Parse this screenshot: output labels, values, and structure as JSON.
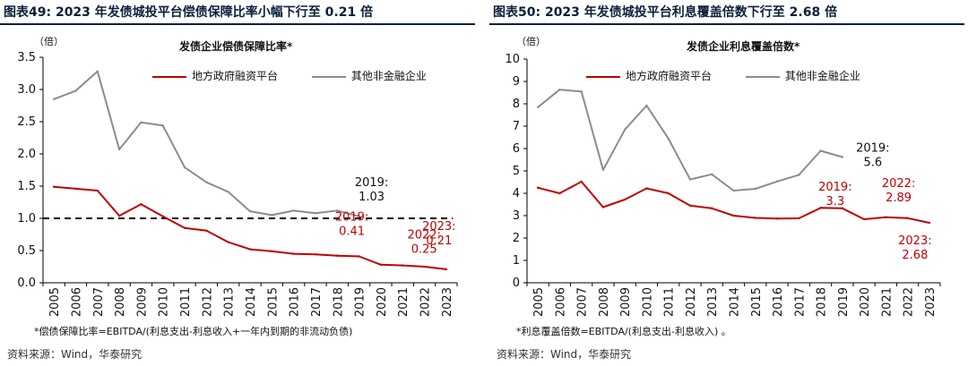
{
  "panels": [
    {
      "title": "图表49:  2023 年发债城投平台偿债保障比率小幅下行至 0.21 倍",
      "unit": "（倍）",
      "chart_title": "发债企业偿债保障比率*",
      "note": "*偿债保障比率=EBITDA/(利息支出-利息收入+一年内到期的非流动负债)",
      "source": "资料来源：Wind，华泰研究"
    },
    {
      "title": "图表50:  2023 年发债城投平台利息覆盖倍数下行至 2.68 倍",
      "unit": "（倍）",
      "chart_title": "发债企业利息覆盖倍数*",
      "note": "*利息覆盖倍数=EBITDA/(利息支出-利息收入) 。",
      "source": "资料来源：Wind，华泰研究"
    }
  ],
  "chart_data": [
    {
      "type": "line",
      "title": "发债企业偿债保障比率*",
      "ylabel": "（倍）",
      "x": [
        "2005",
        "2006",
        "2007",
        "2008",
        "2009",
        "2010",
        "2011",
        "2012",
        "2013",
        "2014",
        "2015",
        "2016",
        "2017",
        "2018",
        "2019",
        "2020",
        "2021",
        "2022",
        "2023"
      ],
      "ylim": [
        0,
        3.5
      ],
      "yticks": [
        "0.0",
        "0.5",
        "1.0",
        "1.5",
        "2.0",
        "2.5",
        "3.0",
        "3.5"
      ],
      "legend_position": "top",
      "grid": false,
      "series": [
        {
          "name": "地方政府融资平台",
          "color": "#c00000",
          "values": [
            1.49,
            1.46,
            1.43,
            1.04,
            1.22,
            1.03,
            0.85,
            0.81,
            0.63,
            0.52,
            0.49,
            0.45,
            0.44,
            0.42,
            0.41,
            0.28,
            0.27,
            0.25,
            0.21
          ]
        },
        {
          "name": "其他非金融企业",
          "color": "#8c8c8c",
          "values": [
            2.85,
            2.98,
            3.28,
            2.07,
            2.49,
            2.44,
            1.79,
            1.56,
            1.41,
            1.11,
            1.05,
            1.12,
            1.08,
            1.12,
            1.03,
            null,
            null,
            null,
            null
          ]
        }
      ],
      "reference_line": {
        "y": 1.0,
        "style": "dashed",
        "color": "#000000"
      },
      "annotations": [
        {
          "x": "2019",
          "series": 1,
          "line1": "2019:",
          "line2": "1.03",
          "color": "#111111"
        },
        {
          "x": "2019",
          "series": 0,
          "line1": "2019:",
          "line2": "0.41",
          "color": "#c00000"
        },
        {
          "x": "2021",
          "series": 0,
          "line1": "2022:",
          "line2": "0.25",
          "color": "#c00000"
        },
        {
          "x": "2023",
          "series": 0,
          "line1": "2023:",
          "line2": "0.21",
          "color": "#c00000"
        }
      ]
    },
    {
      "type": "line",
      "title": "发债企业利息覆盖倍数*",
      "ylabel": "（倍）",
      "x": [
        "2005",
        "2006",
        "2007",
        "2008",
        "2009",
        "2010",
        "2011",
        "2012",
        "2013",
        "2014",
        "2015",
        "2016",
        "2017",
        "2018",
        "2019",
        "2020",
        "2021",
        "2022",
        "2023"
      ],
      "ylim": [
        0,
        10
      ],
      "yticks": [
        "0",
        "1",
        "2",
        "3",
        "4",
        "5",
        "6",
        "7",
        "8",
        "9",
        "10"
      ],
      "legend_position": "top",
      "grid": false,
      "series": [
        {
          "name": "地方政府融资平台",
          "color": "#c00000",
          "values": [
            4.25,
            4.0,
            4.52,
            3.38,
            3.72,
            4.22,
            4.0,
            3.45,
            3.33,
            3.0,
            2.9,
            2.87,
            2.88,
            3.35,
            3.33,
            2.84,
            2.93,
            2.89,
            2.68
          ]
        },
        {
          "name": "其他非金融企业",
          "color": "#8c8c8c",
          "values": [
            7.85,
            8.63,
            8.55,
            5.05,
            6.85,
            7.92,
            6.45,
            4.62,
            4.85,
            4.12,
            4.2,
            4.53,
            4.82,
            5.9,
            5.62,
            null,
            null,
            null,
            null
          ]
        }
      ],
      "annotations": [
        {
          "x": "2019",
          "series": 1,
          "line1": "2019:",
          "line2": "5.6",
          "color": "#111111"
        },
        {
          "x": "2019",
          "series": 0,
          "line1": "2019:",
          "line2": "3.3",
          "color": "#c00000"
        },
        {
          "x": "2022",
          "series": 0,
          "line1": "2022:",
          "line2": "2.89",
          "color": "#c00000"
        },
        {
          "x": "2023",
          "series": 0,
          "line1": "2023:",
          "line2": "2.68",
          "color": "#c00000"
        }
      ]
    }
  ]
}
